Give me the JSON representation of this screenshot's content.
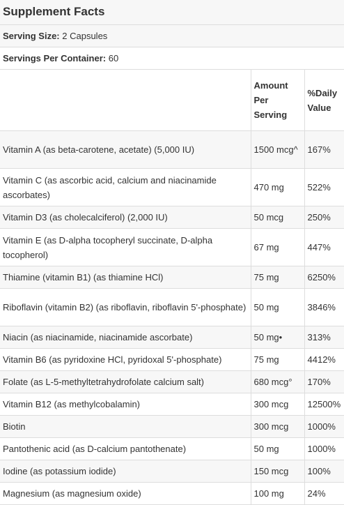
{
  "title": "Supplement Facts",
  "serving_size": {
    "label": "Serving Size:",
    "value": "2 Capsules"
  },
  "servings_per_container": {
    "label": "Servings Per Container:",
    "value": "60"
  },
  "columns": {
    "amount": "Amount Per Serving",
    "daily_value": "%Daily Value"
  },
  "rows": [
    {
      "name": "Vitamin A (as beta-carotene, acetate) (5,000 IU)",
      "amount": "1500 mcg^",
      "dv": "167%"
    },
    {
      "name": "Vitamin C (as ascorbic acid, calcium and niacinamide ascorbates)",
      "amount": "470 mg",
      "dv": "522%"
    },
    {
      "name": "Vitamin D3 (as cholecalciferol) (2,000 IU)",
      "amount": "50 mcg",
      "dv": "250%"
    },
    {
      "name": "Vitamin E (as D-alpha tocopheryl succinate, D-alpha tocopherol)",
      "amount": "67 mg",
      "dv": "447%"
    },
    {
      "name": "Thiamine (vitamin B1) (as thiamine HCl)",
      "amount": "75 mg",
      "dv": "6250%"
    },
    {
      "name": "Riboflavin (vitamin B2) (as riboflavin, riboflavin 5'-phosphate)",
      "amount": "50 mg",
      "dv": "3846%"
    },
    {
      "name": "Niacin (as niacinamide, niacinamide ascorbate)",
      "amount": "50 mg•",
      "dv": "313%"
    },
    {
      "name": "Vitamin B6 (as pyridoxine HCl, pyridoxal 5'-phosphate)",
      "amount": "75 mg",
      "dv": "4412%"
    },
    {
      "name": "Folate (as L-5-methyltetrahydrofolate calcium salt)",
      "amount": "680 mcg°",
      "dv": "170%"
    },
    {
      "name": "Vitamin B12 (as methylcobalamin)",
      "amount": "300 mcg",
      "dv": "12500%"
    },
    {
      "name": "Biotin",
      "amount": "300 mcg",
      "dv": "1000%"
    },
    {
      "name": "Pantothenic acid (as D-calcium pantothenate)",
      "amount": "50 mg",
      "dv": "1000%"
    },
    {
      "name": "Iodine (as potassium iodide)",
      "amount": "150 mcg",
      "dv": "100%"
    },
    {
      "name": "Magnesium (as magnesium oxide)",
      "amount": "100 mg",
      "dv": "24%"
    }
  ]
}
